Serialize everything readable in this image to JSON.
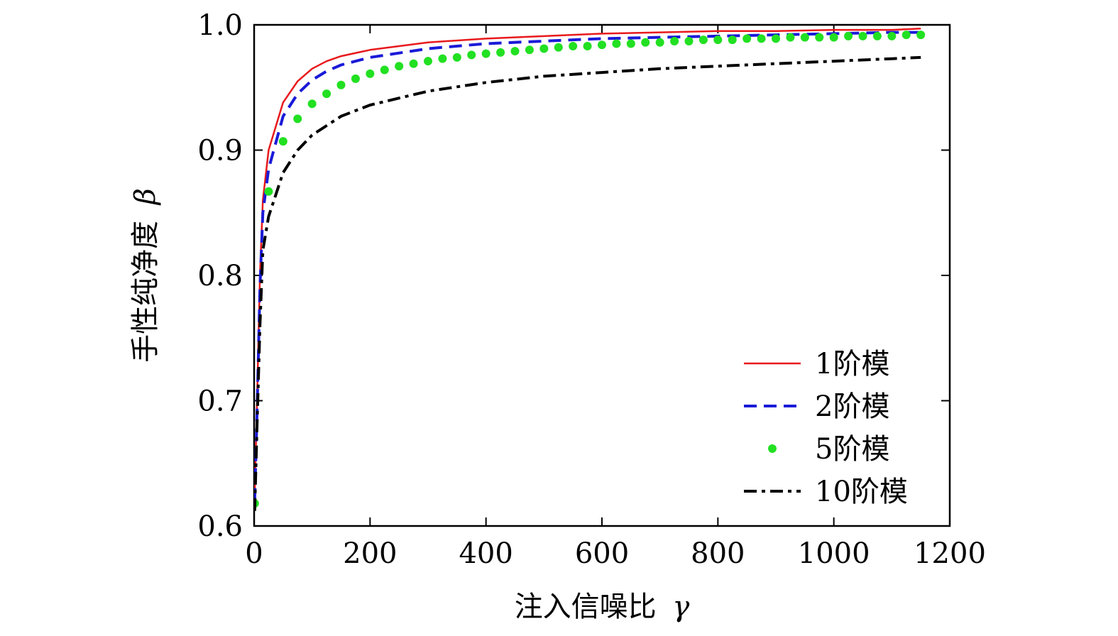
{
  "chart_data": {
    "type": "line",
    "xlabel": "注入信噪比",
    "xlabel_symbol": "γ",
    "ylabel": "手性纯净度",
    "ylabel_symbol": "β",
    "xlim": [
      0,
      1200
    ],
    "ylim": [
      0.6,
      1.0
    ],
    "xticks": [
      0,
      200,
      400,
      600,
      800,
      1000,
      1200
    ],
    "xtick_labels": [
      "0",
      "200",
      "400",
      "600",
      "800",
      "1000",
      "1200"
    ],
    "yticks": [
      0.6,
      0.7,
      0.8,
      0.9,
      1.0
    ],
    "ytick_labels": [
      "0.6",
      "0.7",
      "0.8",
      "0.9",
      "1.0"
    ],
    "grid": false,
    "legend_position": "bottom-right",
    "series": [
      {
        "name": "1阶模",
        "color": "#e8191c",
        "style": "solid",
        "x": [
          1,
          5,
          10,
          15,
          25,
          50,
          75,
          100,
          125,
          150,
          200,
          300,
          400,
          500,
          600,
          700,
          800,
          900,
          1000,
          1100,
          1150
        ],
        "y": [
          0.625,
          0.7,
          0.8,
          0.86,
          0.9,
          0.938,
          0.955,
          0.965,
          0.971,
          0.975,
          0.98,
          0.986,
          0.989,
          0.991,
          0.993,
          0.994,
          0.995,
          0.995,
          0.996,
          0.996,
          0.997
        ]
      },
      {
        "name": "2阶模",
        "color": "#1a1ad8",
        "style": "dashed",
        "x": [
          1,
          5,
          10,
          15,
          25,
          50,
          75,
          100,
          125,
          150,
          200,
          300,
          400,
          500,
          600,
          700,
          800,
          900,
          1000,
          1100,
          1150
        ],
        "y": [
          0.62,
          0.69,
          0.79,
          0.85,
          0.885,
          0.927,
          0.945,
          0.956,
          0.963,
          0.968,
          0.974,
          0.981,
          0.985,
          0.987,
          0.989,
          0.99,
          0.991,
          0.992,
          0.993,
          0.994,
          0.994
        ]
      },
      {
        "name": "5阶模",
        "color": "#22e022",
        "style": "dotted",
        "x": [
          1,
          25,
          50,
          75,
          100,
          125,
          150,
          175,
          200,
          225,
          250,
          275,
          300,
          325,
          350,
          375,
          400,
          425,
          450,
          475,
          500,
          525,
          550,
          575,
          600,
          625,
          650,
          675,
          700,
          725,
          750,
          775,
          800,
          825,
          850,
          875,
          900,
          925,
          950,
          975,
          1000,
          1025,
          1050,
          1075,
          1100,
          1125,
          1150
        ],
        "y": [
          0.618,
          0.867,
          0.907,
          0.925,
          0.937,
          0.945,
          0.952,
          0.957,
          0.961,
          0.964,
          0.967,
          0.969,
          0.971,
          0.973,
          0.974,
          0.976,
          0.977,
          0.978,
          0.979,
          0.98,
          0.981,
          0.982,
          0.983,
          0.983,
          0.984,
          0.985,
          0.985,
          0.986,
          0.986,
          0.987,
          0.987,
          0.988,
          0.988,
          0.988,
          0.989,
          0.989,
          0.989,
          0.99,
          0.99,
          0.99,
          0.99,
          0.991,
          0.991,
          0.991,
          0.991,
          0.992,
          0.992
        ]
      },
      {
        "name": "10阶模",
        "color": "#000000",
        "style": "dashdot",
        "x": [
          1,
          5,
          10,
          15,
          25,
          50,
          75,
          100,
          150,
          200,
          300,
          400,
          500,
          600,
          700,
          800,
          900,
          1000,
          1100,
          1150
        ],
        "y": [
          0.612,
          0.68,
          0.76,
          0.82,
          0.847,
          0.882,
          0.9,
          0.912,
          0.927,
          0.936,
          0.947,
          0.954,
          0.959,
          0.962,
          0.965,
          0.967,
          0.969,
          0.971,
          0.973,
          0.974
        ]
      }
    ]
  }
}
